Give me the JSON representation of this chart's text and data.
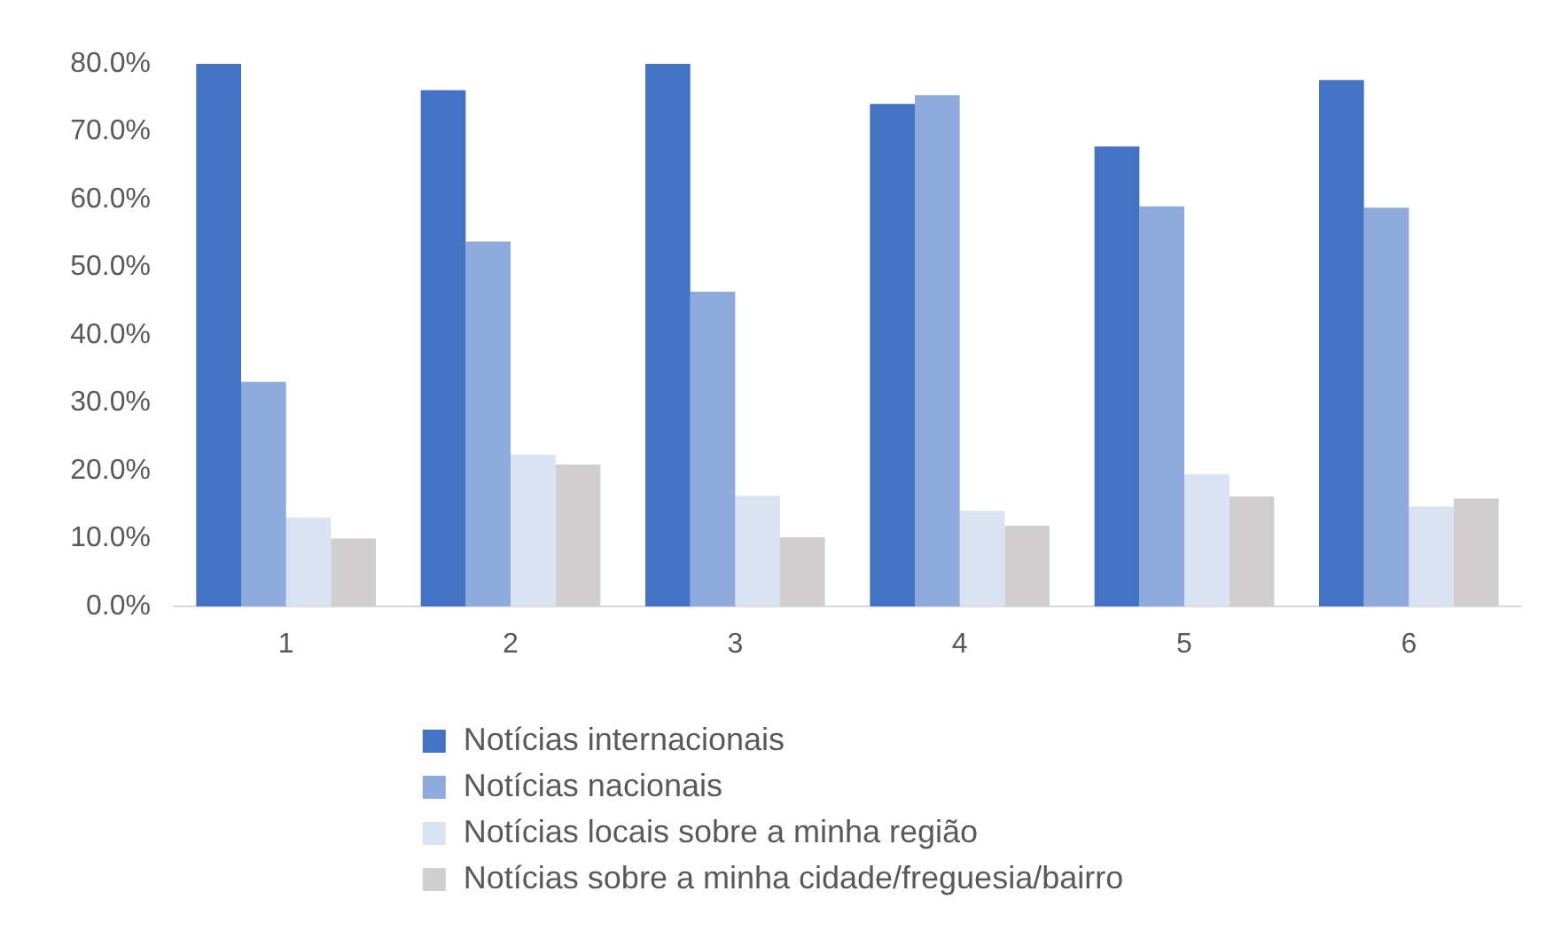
{
  "chart_data": {
    "type": "bar",
    "categories": [
      "1",
      "2",
      "3",
      "4",
      "5",
      "6"
    ],
    "series": [
      {
        "name": "Notícias internacionais",
        "color": "#4472c4",
        "values": [
          80.0,
          76.1,
          80.0,
          74.1,
          67.8,
          77.6
        ]
      },
      {
        "name": "Notícias nacionais",
        "color": "#8faadc",
        "values": [
          33.1,
          53.8,
          46.4,
          75.4,
          59.0,
          58.8
        ]
      },
      {
        "name": "Notícias locais sobre a minha região",
        "color": "#dae3f3",
        "values": [
          13.1,
          22.4,
          16.3,
          14.1,
          19.5,
          14.7
        ]
      },
      {
        "name": "Notícias sobre a minha cidade/freguesia/bairro",
        "color": "#d0cece",
        "values": [
          10.0,
          20.9,
          10.2,
          11.9,
          16.2,
          15.9
        ]
      }
    ],
    "ylim": [
      0,
      80
    ],
    "yticks": [
      {
        "value": 0,
        "label": "0.0%"
      },
      {
        "value": 10,
        "label": "10.0%"
      },
      {
        "value": 20,
        "label": "20.0%"
      },
      {
        "value": 30,
        "label": "30.0%"
      },
      {
        "value": 40,
        "label": "40.0%"
      },
      {
        "value": 50,
        "label": "50.0%"
      },
      {
        "value": 60,
        "label": "60.0%"
      },
      {
        "value": 70,
        "label": "70.0%"
      },
      {
        "value": 80,
        "label": "80.0%"
      }
    ],
    "grid": false,
    "legend": "bottom"
  }
}
